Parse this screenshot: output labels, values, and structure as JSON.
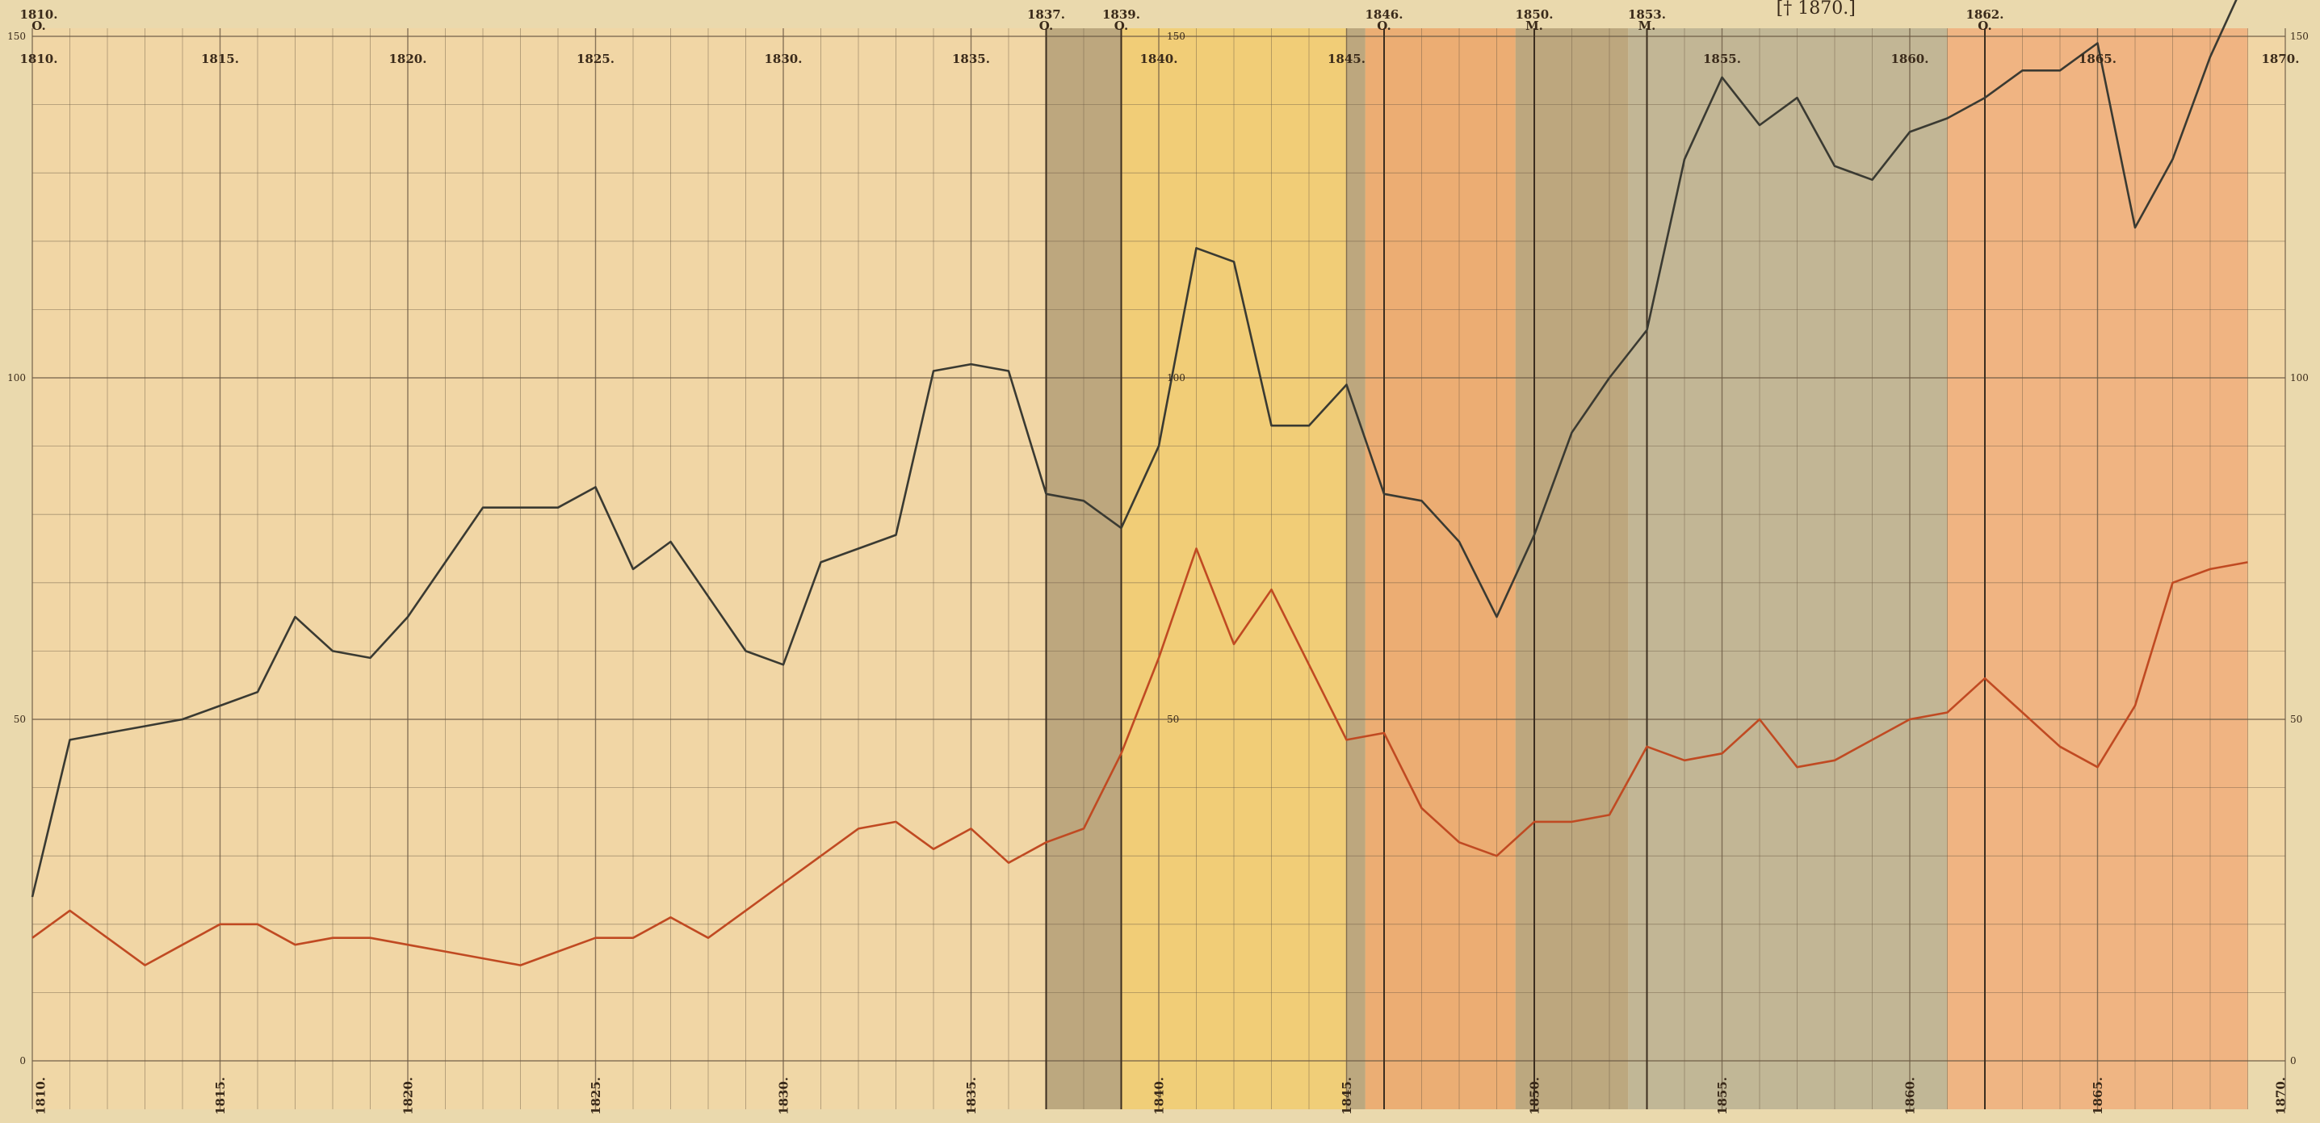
{
  "chart_data": {
    "type": "line",
    "title": "",
    "xlabel": "",
    "ylabel": "",
    "xlim": [
      1810,
      1870
    ],
    "ylim": [
      0,
      150
    ],
    "grid": true,
    "legend": "none",
    "x_ticks_top": [
      "1810.",
      "1815.",
      "1820.",
      "1825.",
      "1830.",
      "1835.",
      "1840.",
      "1845.",
      "1855.",
      "1860.",
      "1865.",
      "1870."
    ],
    "x_ticks_bottom": [
      "1810.",
      "1815.",
      "1820.",
      "1825.",
      "1830.",
      "1835.",
      "1840.",
      "1845.",
      "1850.",
      "1855.",
      "1860.",
      "1865.",
      "1870."
    ],
    "y_ticks_left": [
      "0",
      "50",
      "100",
      "150"
    ],
    "y_ticks_right": [
      "0",
      "50",
      "100",
      "150"
    ],
    "y_ticks_mid": [
      "50",
      "100",
      "150"
    ],
    "annotations": [
      {
        "year": 1810,
        "label": "1810.",
        "mark": "O."
      },
      {
        "year": 1837,
        "label": "1837.",
        "mark": "O."
      },
      {
        "year": 1839,
        "label": "1839.",
        "mark": "O."
      },
      {
        "year": 1846,
        "label": "1846.",
        "mark": "O."
      },
      {
        "year": 1850,
        "label": "1850.",
        "mark": "M."
      },
      {
        "year": 1853,
        "label": "1853.",
        "mark": "M."
      },
      {
        "year": 1862,
        "label": "1862.",
        "mark": "O."
      }
    ],
    "note": "[† 1870.]",
    "periods": [
      {
        "from": 1810,
        "to": 1837,
        "color": "#f1d6a5"
      },
      {
        "from": 1837,
        "to": 1839,
        "color": "#b7a27a"
      },
      {
        "from": 1839,
        "to": 1845,
        "color": "#f1cc72"
      },
      {
        "from": 1845,
        "to": 1845.5,
        "color": "#b7a27a"
      },
      {
        "from": 1845.5,
        "to": 1849.5,
        "color": "#eba96e"
      },
      {
        "from": 1849.5,
        "to": 1852.5,
        "color": "#b7a27a"
      },
      {
        "from": 1852.5,
        "to": 1861,
        "color": "#bdb393"
      },
      {
        "from": 1861,
        "to": 1866,
        "color": "#efb07e"
      },
      {
        "from": 1866,
        "to": 1869,
        "color": "#efb07e"
      }
    ],
    "series": [
      {
        "color": "#3a3a32",
        "x": [
          1810,
          1811,
          1812,
          1813,
          1814,
          1815,
          1816,
          1817,
          1818,
          1819,
          1820,
          1821,
          1822,
          1823,
          1824,
          1825,
          1826,
          1827,
          1828,
          1829,
          1830,
          1831,
          1832,
          1833,
          1834,
          1835,
          1836,
          1837,
          1838,
          1839,
          1840,
          1841,
          1842,
          1843,
          1844,
          1845,
          1846,
          1847,
          1848,
          1849,
          1850,
          1851,
          1852,
          1853,
          1854,
          1855,
          1856,
          1857,
          1858,
          1859,
          1860,
          1861,
          1862,
          1863,
          1864,
          1865,
          1866,
          1867,
          1868,
          1869
        ],
        "values": [
          24,
          47,
          48,
          49,
          50,
          52,
          54,
          65,
          60,
          59,
          65,
          73,
          81,
          81,
          81,
          84,
          72,
          76,
          68,
          60,
          58,
          73,
          75,
          77,
          101,
          102,
          101,
          83,
          82,
          78,
          90,
          119,
          117,
          93,
          93,
          99,
          83,
          82,
          76,
          65,
          77,
          92,
          100,
          107,
          132,
          144,
          137,
          141,
          131,
          129,
          136,
          138,
          141,
          145,
          145,
          149,
          122,
          132,
          147,
          159
        ]
      },
      {
        "color": "#c04a22",
        "x": [
          1810,
          1811,
          1812,
          1813,
          1814,
          1815,
          1816,
          1817,
          1818,
          1819,
          1820,
          1821,
          1822,
          1823,
          1824,
          1825,
          1826,
          1827,
          1828,
          1829,
          1830,
          1831,
          1832,
          1833,
          1834,
          1835,
          1836,
          1837,
          1838,
          1839,
          1840,
          1841,
          1842,
          1843,
          1844,
          1845,
          1846,
          1847,
          1848,
          1849,
          1850,
          1851,
          1852,
          1853,
          1854,
          1855,
          1856,
          1857,
          1858,
          1859,
          1860,
          1861,
          1862,
          1863,
          1864,
          1865,
          1866,
          1867,
          1868,
          1869
        ],
        "values": [
          18,
          22,
          18,
          14,
          17,
          20,
          20,
          17,
          18,
          18,
          17,
          16,
          15,
          14,
          16,
          18,
          18,
          21,
          18,
          22,
          26,
          30,
          34,
          35,
          31,
          34,
          29,
          32,
          34,
          45,
          59,
          75,
          61,
          69,
          58,
          47,
          48,
          37,
          32,
          30,
          35,
          35,
          36,
          46,
          44,
          45,
          50,
          43,
          44,
          47,
          50,
          51,
          56,
          51,
          46,
          43,
          52,
          70,
          72,
          73
        ]
      }
    ]
  }
}
